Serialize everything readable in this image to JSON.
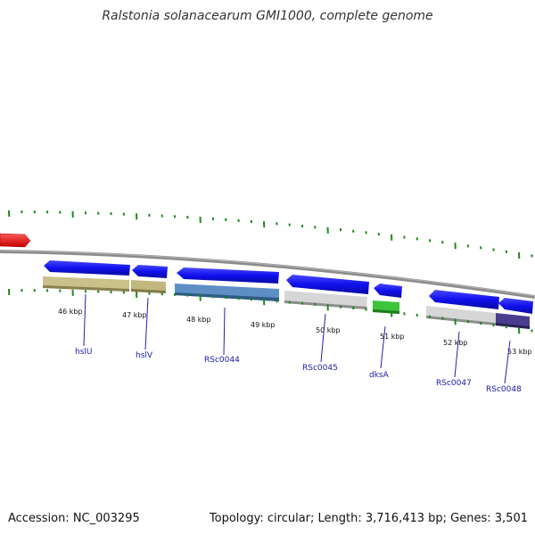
{
  "title": "Ralstonia solanacearum GMI1000, complete genome",
  "footer": {
    "accession": "Accession: NC_003295",
    "summary": "Topology: circular; Length: 3,716,413 bp; Genes: 3,501"
  },
  "map": {
    "tick_labels": [
      "46 kbp",
      "47 kbp",
      "48 kbp",
      "49 kbp",
      "50 kbp",
      "51 kbp",
      "52 kbp",
      "53 kbp"
    ],
    "genes": [
      {
        "name": "hslU",
        "strand": "reverse"
      },
      {
        "name": "hslV",
        "strand": "reverse"
      },
      {
        "name": "RSc0044",
        "strand": "reverse"
      },
      {
        "name": "RSc0045",
        "strand": "reverse"
      },
      {
        "name": "dksA",
        "strand": "reverse"
      },
      {
        "name": "RSc0047",
        "strand": "reverse"
      },
      {
        "name": "RSc0048",
        "strand": "reverse"
      }
    ],
    "colors": {
      "cds_arrow": "#1010ee",
      "forward_feature": "#ee1111",
      "backbone": "#8a8a8a",
      "tick": "#1c8a1c",
      "gene_label": "#1a1aa8",
      "hslU": "#c9c08a",
      "hslV": "#c2b87e",
      "RSc0044": "#5d8fc4",
      "RSc0045": "#cfcfcf",
      "dksA": "#3cc43c",
      "RSc0047": "#cfcfcf",
      "RSc0048": "#4b3d8e"
    }
  }
}
